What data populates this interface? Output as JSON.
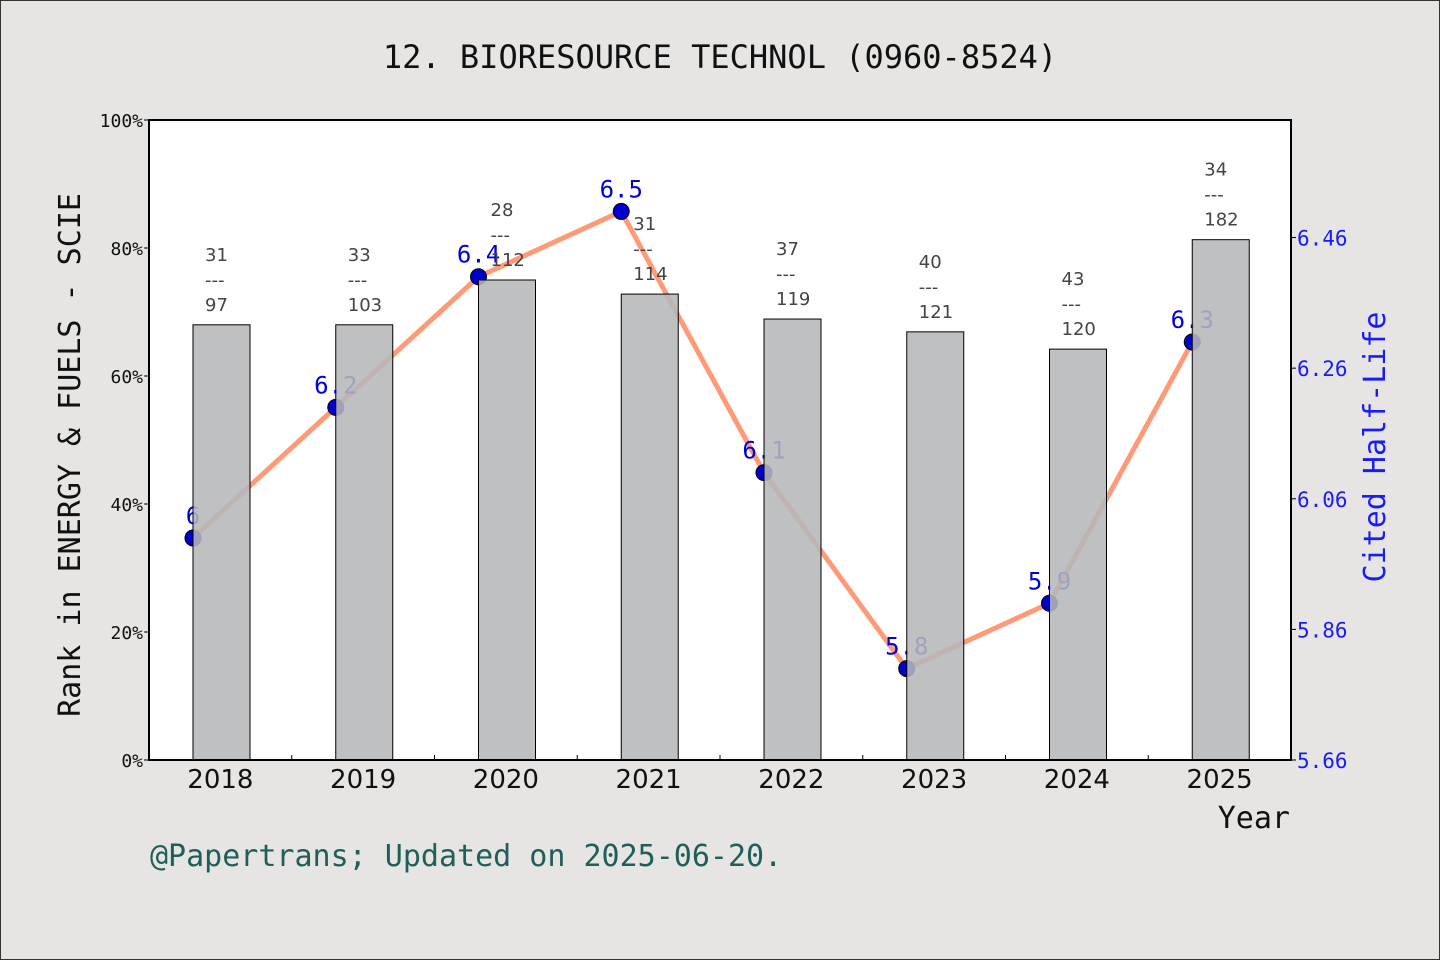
{
  "chart_data": {
    "type": "bar+line",
    "title": "12. BIORESOURCE TECHNOL (0960-8524)",
    "xlabel": "Year",
    "ylabel": "Rank in ENERGY & FUELS - SCIE",
    "y2label": "Cited Half-Life",
    "categories": [
      "2018",
      "2019",
      "2020",
      "2021",
      "2022",
      "2023",
      "2024",
      "2025"
    ],
    "ylim": [
      0,
      100
    ],
    "yticks": [
      "0%",
      "20%",
      "40%",
      "60%",
      "80%",
      "100%"
    ],
    "y2lim": [
      5.66,
      6.64
    ],
    "y2ticks": [
      "5.66",
      "5.86",
      "6.06",
      "6.26",
      "6.46"
    ],
    "bars": {
      "values": [
        68.0,
        68.0,
        75.0,
        72.8,
        68.9,
        66.9,
        64.2,
        81.3
      ],
      "rank": [
        "31",
        "33",
        "28",
        "31",
        "37",
        "40",
        "43",
        "34"
      ],
      "total": [
        "97",
        "103",
        "112",
        "114",
        "119",
        "121",
        "120",
        "182"
      ],
      "color": "#b6b7b9"
    },
    "line": {
      "values": [
        6.0,
        6.2,
        6.4,
        6.5,
        6.1,
        5.8,
        5.9,
        6.3
      ],
      "labels": [
        "6",
        "6.2",
        "6.4",
        "6.5",
        "6.1",
        "5.8",
        "5.9",
        "6.3"
      ],
      "color": "#ff9a78",
      "marker_color": "#0000cc"
    },
    "grid": false,
    "footer": "@Papertrans; Updated on 2025-06-20."
  }
}
